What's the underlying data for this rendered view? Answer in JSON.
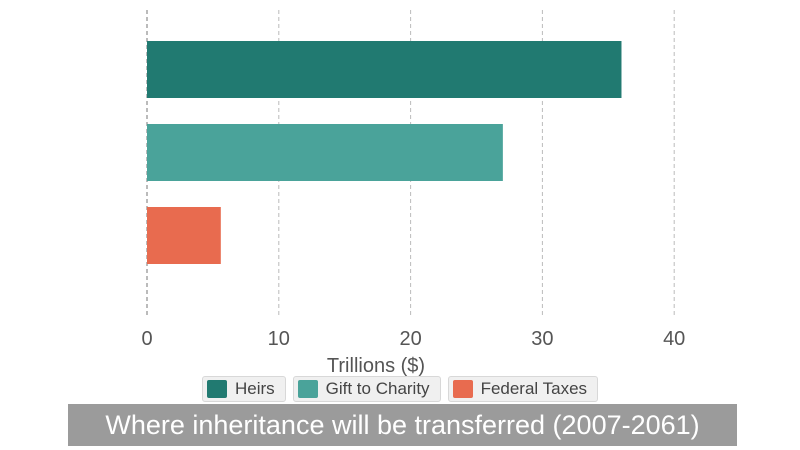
{
  "chart_data": {
    "type": "bar",
    "orientation": "horizontal",
    "title": "Where inheritance will be transferred (2007-2061)",
    "xlabel": "Trillions ($)",
    "ylabel": "",
    "xlim": [
      0,
      45
    ],
    "x_ticks": [
      "0",
      "10",
      "20",
      "30",
      "40"
    ],
    "grid": true,
    "legend_position": "bottom",
    "categories": [
      "Heirs",
      "Gift to Charity",
      "Federal Taxes"
    ],
    "values": [
      36,
      27,
      5.6
    ],
    "colors": [
      "#217a71",
      "#4aa39a",
      "#e86b4f"
    ]
  },
  "legend": [
    {
      "label": "Heirs",
      "color": "#217a71"
    },
    {
      "label": "Gift to Charity",
      "color": "#4aa39a"
    },
    {
      "label": "Federal Taxes",
      "color": "#e86b4f"
    }
  ]
}
